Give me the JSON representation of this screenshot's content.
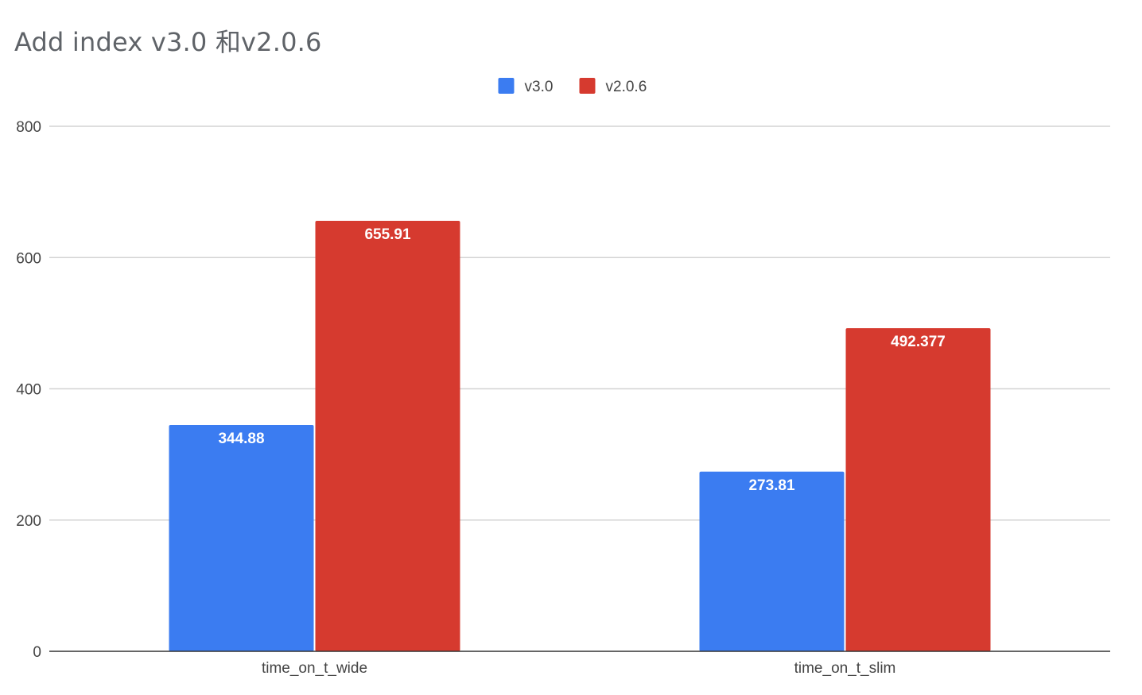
{
  "chart_data": {
    "type": "bar",
    "title": "Add index v3.0 和v2.0.6",
    "xlabel": "",
    "ylabel": "",
    "categories": [
      "time_on_t_wide",
      "time_on_t_slim"
    ],
    "series": [
      {
        "name": "v3.0",
        "color": "#3b7cf1",
        "values": [
          344.88,
          273.81
        ],
        "labels": [
          "344.88",
          "273.81"
        ]
      },
      {
        "name": "v2.0.6",
        "color": "#d63a2f",
        "values": [
          655.91,
          492.377
        ],
        "labels": [
          "655.91",
          "492.377"
        ]
      }
    ],
    "ylim": [
      0,
      800
    ],
    "yticks": [
      0,
      200,
      400,
      600,
      800
    ],
    "grid": true,
    "legend_position": "top-center"
  }
}
